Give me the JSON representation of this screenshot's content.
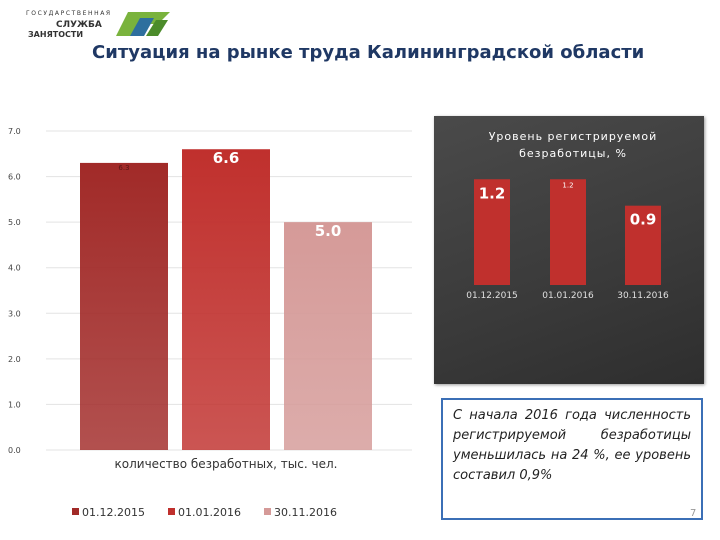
{
  "logo": {
    "line1": "ГОСУДАРСТВЕННАЯ",
    "line2": "СЛУЖБА",
    "line3": "ЗАНЯТОСТИ"
  },
  "title": "Ситуация на рынке труда Калининградской области",
  "callout_text": "С начала 2016 года численность регистрируемой безработицы уменьшилась на 24 %, ее уровень составил 0,9%",
  "page_number": "7",
  "colors": {
    "bar1": "#a12a28",
    "bar2": "#c0302d",
    "bar3": "#d59a98",
    "title": "#1f3864",
    "callout_border": "#3b6fb6"
  },
  "chart_data": [
    {
      "type": "bar",
      "title": "",
      "xlabel": "количество безработных, тыс. чел.",
      "ylabel": "",
      "ylim": [
        0,
        7
      ],
      "yticks": [
        "0.0",
        "1.0",
        "2.0",
        "3.0",
        "4.0",
        "5.0",
        "6.0",
        "7.0"
      ],
      "grid": true,
      "legend": "bottom",
      "categories": [
        "количество безработных, тыс. чел."
      ],
      "series": [
        {
          "name": "01.12.2015",
          "values": [
            6.3
          ],
          "label": "6.3"
        },
        {
          "name": "01.01.2016",
          "values": [
            6.6
          ],
          "label": "6.6"
        },
        {
          "name": "30.11.2016",
          "values": [
            5.0
          ],
          "label": "5.0"
        }
      ]
    },
    {
      "type": "bar",
      "title": "Уровень регистрируемой безработицы, %",
      "categories": [
        "01.12.2015",
        "01.01.2016",
        "30.11.2016"
      ],
      "values": [
        1.2,
        1.2,
        0.9
      ],
      "labels": [
        "1.2",
        "1.2",
        "0.9"
      ],
      "ylim": [
        0,
        1.6
      ],
      "grid": false,
      "legend": "none"
    }
  ]
}
